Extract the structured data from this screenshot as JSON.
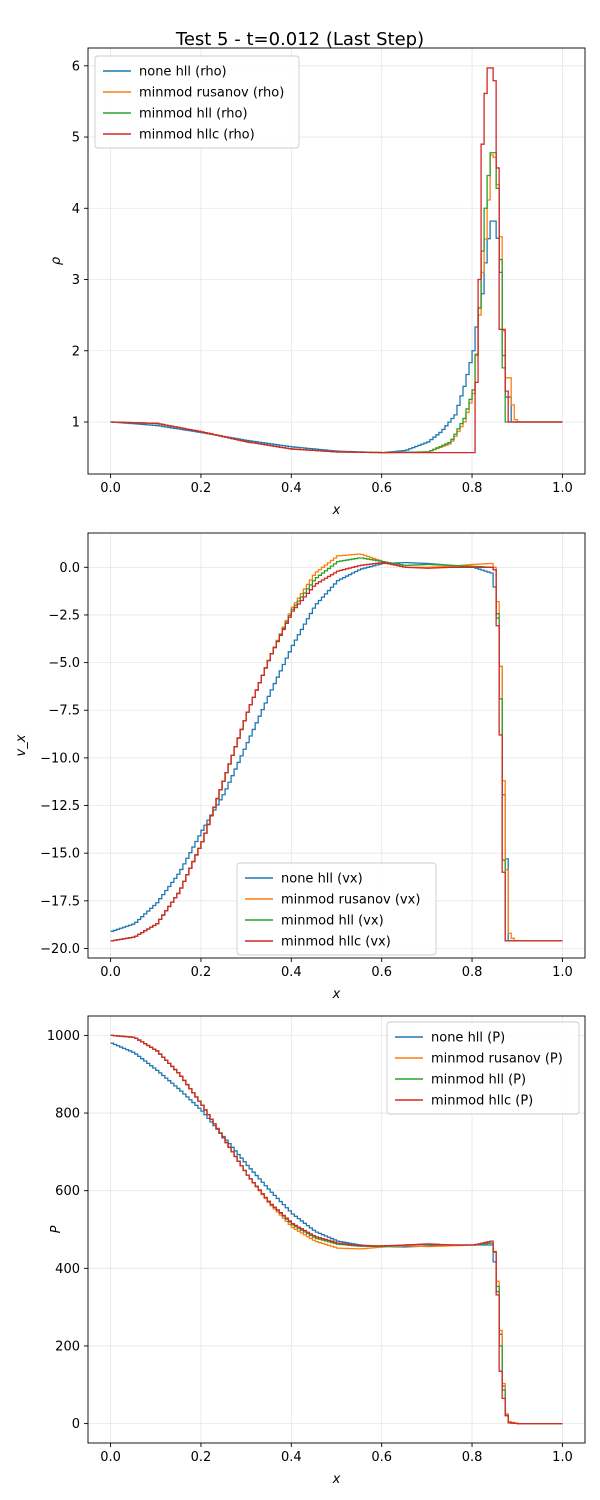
{
  "figure_title": "Test 5 - t=0.012 (Last Step)",
  "colors": {
    "none_hll": "#1f77b4",
    "minmod_rusanov": "#ff7f0e",
    "minmod_hll": "#2ca02c",
    "minmod_hllc": "#d62728",
    "grid": "#e6e6e6"
  },
  "chart_data": [
    {
      "type": "line",
      "title": "",
      "xlabel": "x",
      "ylabel": "ρ",
      "xlim": [
        -0.05,
        1.05
      ],
      "ylim": [
        0.27,
        6.25
      ],
      "xticks": [
        0.0,
        0.2,
        0.4,
        0.6,
        0.8,
        1.0
      ],
      "xtick_labels": [
        "0.0",
        "0.2",
        "0.4",
        "0.6",
        "0.8",
        "1.0"
      ],
      "yticks": [
        1,
        2,
        3,
        4,
        5,
        6
      ],
      "ytick_labels": [
        "1",
        "2",
        "3",
        "4",
        "5",
        "6"
      ],
      "grid": true,
      "legend_position": "top-left",
      "step": true,
      "series": [
        {
          "name": "none hll (rho)",
          "color_key": "none_hll",
          "x": [
            0.0,
            0.1,
            0.2,
            0.3,
            0.4,
            0.5,
            0.6,
            0.65,
            0.7,
            0.73,
            0.76,
            0.78,
            0.8,
            0.81,
            0.82,
            0.83,
            0.84,
            0.85,
            0.86,
            0.87,
            0.88,
            0.885,
            0.9,
            1.0
          ],
          "y": [
            1.0,
            0.95,
            0.85,
            0.74,
            0.65,
            0.59,
            0.57,
            0.6,
            0.72,
            0.87,
            1.1,
            1.5,
            2.0,
            2.5,
            2.8,
            3.45,
            3.82,
            3.82,
            3.1,
            1.35,
            1.35,
            1.0,
            1.0,
            1.0
          ]
        },
        {
          "name": "minmod rusanov (rho)",
          "color_key": "minmod_rusanov",
          "x": [
            0.0,
            0.1,
            0.2,
            0.3,
            0.4,
            0.5,
            0.6,
            0.7,
            0.75,
            0.78,
            0.8,
            0.81,
            0.82,
            0.83,
            0.84,
            0.85,
            0.86,
            0.87,
            0.88,
            0.89,
            0.9,
            0.91,
            1.0
          ],
          "y": [
            1.0,
            0.98,
            0.86,
            0.72,
            0.62,
            0.58,
            0.57,
            0.58,
            0.7,
            1.0,
            1.4,
            2.2,
            3.1,
            3.8,
            4.75,
            4.7,
            3.6,
            1.62,
            1.62,
            1.05,
            1.0,
            1.0,
            1.0
          ]
        },
        {
          "name": "minmod hll (rho)",
          "color_key": "minmod_hll",
          "x": [
            0.0,
            0.1,
            0.2,
            0.3,
            0.4,
            0.5,
            0.6,
            0.7,
            0.75,
            0.78,
            0.8,
            0.81,
            0.82,
            0.83,
            0.84,
            0.85,
            0.86,
            0.87,
            0.88,
            0.9,
            1.0
          ],
          "y": [
            1.0,
            0.98,
            0.86,
            0.72,
            0.62,
            0.58,
            0.57,
            0.58,
            0.72,
            1.05,
            1.45,
            2.2,
            3.4,
            4.3,
            4.78,
            4.78,
            3.28,
            1.0,
            1.0,
            1.0,
            1.0
          ]
        },
        {
          "name": "minmod hllc (rho)",
          "color_key": "minmod_hllc",
          "x": [
            0.0,
            0.1,
            0.2,
            0.3,
            0.4,
            0.5,
            0.6,
            0.7,
            0.8,
            0.81,
            0.82,
            0.83,
            0.84,
            0.85,
            0.86,
            0.87,
            0.875,
            0.9,
            1.0
          ],
          "y": [
            1.0,
            0.98,
            0.86,
            0.72,
            0.62,
            0.58,
            0.57,
            0.57,
            0.57,
            2.05,
            4.9,
            5.97,
            5.97,
            5.7,
            2.3,
            2.3,
            1.0,
            1.0,
            1.0
          ]
        }
      ]
    },
    {
      "type": "line",
      "title": "",
      "xlabel": "x",
      "ylabel": "v_x",
      "xlim": [
        -0.05,
        1.05
      ],
      "ylim": [
        -20.5,
        1.8
      ],
      "xticks": [
        0.0,
        0.2,
        0.4,
        0.6,
        0.8,
        1.0
      ],
      "xtick_labels": [
        "0.0",
        "0.2",
        "0.4",
        "0.6",
        "0.8",
        "1.0"
      ],
      "yticks": [
        0.0,
        -2.5,
        -5.0,
        -7.5,
        -10.0,
        -12.5,
        -15.0,
        -17.5,
        -20.0
      ],
      "ytick_labels": [
        "0.0",
        "−2.5",
        "−5.0",
        "−7.5",
        "−10.0",
        "−12.5",
        "−15.0",
        "−17.5",
        "−20.0"
      ],
      "grid": true,
      "legend_position": "bottom-center",
      "step": true,
      "series": [
        {
          "name": "none hll (vx)",
          "color_key": "none_hll",
          "x": [
            0.0,
            0.05,
            0.1,
            0.15,
            0.2,
            0.25,
            0.3,
            0.35,
            0.4,
            0.45,
            0.5,
            0.55,
            0.6,
            0.65,
            0.7,
            0.75,
            0.8,
            0.84,
            0.85,
            0.86,
            0.87,
            0.875,
            0.88,
            0.9,
            1.0
          ],
          "y": [
            -19.1,
            -18.7,
            -17.6,
            -16.0,
            -13.8,
            -11.8,
            -9.2,
            -6.6,
            -4.1,
            -2.0,
            -0.7,
            -0.1,
            0.2,
            0.25,
            0.2,
            0.1,
            0.0,
            -0.3,
            -1.4,
            -5.2,
            -15.3,
            -15.3,
            -19.6,
            -19.6,
            -19.6
          ]
        },
        {
          "name": "minmod rusanov (vx)",
          "color_key": "minmod_rusanov",
          "x": [
            0.0,
            0.05,
            0.1,
            0.15,
            0.2,
            0.25,
            0.3,
            0.35,
            0.4,
            0.45,
            0.5,
            0.55,
            0.6,
            0.65,
            0.7,
            0.75,
            0.8,
            0.84,
            0.85,
            0.86,
            0.87,
            0.88,
            0.89,
            0.9,
            1.0
          ],
          "y": [
            -19.6,
            -19.4,
            -18.7,
            -17.0,
            -14.4,
            -11.0,
            -7.6,
            -4.7,
            -2.1,
            -0.3,
            0.6,
            0.7,
            0.3,
            0.0,
            0.0,
            0.05,
            0.15,
            0.2,
            -0.1,
            -5.2,
            -14.2,
            -19.2,
            -19.6,
            -19.6,
            -19.6
          ]
        },
        {
          "name": "minmod hll (vx)",
          "color_key": "minmod_hll",
          "x": [
            0.0,
            0.05,
            0.1,
            0.15,
            0.2,
            0.25,
            0.3,
            0.35,
            0.4,
            0.45,
            0.5,
            0.55,
            0.6,
            0.65,
            0.7,
            0.75,
            0.8,
            0.84,
            0.85,
            0.86,
            0.87,
            0.875,
            0.9,
            1.0
          ],
          "y": [
            -19.6,
            -19.4,
            -18.7,
            -17.0,
            -14.4,
            -11.0,
            -7.6,
            -4.7,
            -2.2,
            -0.6,
            0.3,
            0.5,
            0.3,
            0.1,
            0.15,
            0.1,
            0.05,
            0.0,
            -0.2,
            -6.9,
            -19.6,
            -19.6,
            -19.6,
            -19.6
          ]
        },
        {
          "name": "minmod hllc (vx)",
          "color_key": "minmod_hllc",
          "x": [
            0.0,
            0.05,
            0.1,
            0.15,
            0.2,
            0.25,
            0.3,
            0.35,
            0.4,
            0.45,
            0.5,
            0.55,
            0.6,
            0.65,
            0.7,
            0.75,
            0.8,
            0.84,
            0.85,
            0.86,
            0.87,
            0.875,
            0.9,
            1.0
          ],
          "y": [
            -19.6,
            -19.4,
            -18.7,
            -17.0,
            -14.4,
            -11.0,
            -7.6,
            -4.7,
            -2.3,
            -0.9,
            -0.2,
            0.1,
            0.25,
            0.0,
            -0.05,
            0.0,
            0.0,
            0.0,
            -0.2,
            -8.8,
            -19.6,
            -19.6,
            -19.6,
            -19.6
          ]
        }
      ]
    },
    {
      "type": "line",
      "title": "",
      "xlabel": "x",
      "ylabel": "P",
      "xlim": [
        -0.05,
        1.05
      ],
      "ylim": [
        -50,
        1050
      ],
      "xticks": [
        0.0,
        0.2,
        0.4,
        0.6,
        0.8,
        1.0
      ],
      "xtick_labels": [
        "0.0",
        "0.2",
        "0.4",
        "0.6",
        "0.8",
        "1.0"
      ],
      "yticks": [
        0,
        200,
        400,
        600,
        800,
        1000
      ],
      "ytick_labels": [
        "0",
        "200",
        "400",
        "600",
        "800",
        "1000"
      ],
      "grid": true,
      "legend_position": "top-right",
      "step": true,
      "series": [
        {
          "name": "none hll (P)",
          "color_key": "none_hll",
          "x": [
            0.0,
            0.05,
            0.1,
            0.15,
            0.2,
            0.25,
            0.3,
            0.35,
            0.4,
            0.45,
            0.5,
            0.55,
            0.6,
            0.65,
            0.7,
            0.75,
            0.8,
            0.84,
            0.85,
            0.86,
            0.87,
            0.88,
            0.9,
            1.0
          ],
          "y": [
            980,
            955,
            910,
            860,
            805,
            735,
            665,
            600,
            540,
            495,
            470,
            460,
            456,
            455,
            458,
            460,
            460,
            460,
            395,
            230,
            30,
            2,
            0,
            0
          ]
        },
        {
          "name": "minmod rusanov (P)",
          "color_key": "minmod_rusanov",
          "x": [
            0.0,
            0.05,
            0.1,
            0.15,
            0.2,
            0.25,
            0.3,
            0.35,
            0.4,
            0.45,
            0.5,
            0.55,
            0.6,
            0.65,
            0.7,
            0.75,
            0.8,
            0.84,
            0.85,
            0.86,
            0.87,
            0.88,
            0.89,
            0.9,
            1.0
          ],
          "y": [
            1000,
            995,
            960,
            900,
            820,
            730,
            640,
            565,
            505,
            470,
            452,
            450,
            455,
            458,
            456,
            458,
            460,
            465,
            430,
            240,
            35,
            5,
            2,
            0,
            0
          ]
        },
        {
          "name": "minmod hll (P)",
          "color_key": "minmod_hll",
          "x": [
            0.0,
            0.05,
            0.1,
            0.15,
            0.2,
            0.25,
            0.3,
            0.35,
            0.4,
            0.45,
            0.5,
            0.55,
            0.6,
            0.65,
            0.7,
            0.75,
            0.8,
            0.84,
            0.85,
            0.86,
            0.87,
            0.88,
            0.9,
            1.0
          ],
          "y": [
            1000,
            995,
            960,
            900,
            820,
            730,
            640,
            568,
            512,
            478,
            462,
            457,
            456,
            460,
            462,
            460,
            460,
            465,
            430,
            200,
            30,
            2,
            0,
            0
          ]
        },
        {
          "name": "minmod hllc (P)",
          "color_key": "minmod_hllc",
          "x": [
            0.0,
            0.05,
            0.1,
            0.15,
            0.2,
            0.25,
            0.3,
            0.35,
            0.4,
            0.45,
            0.5,
            0.55,
            0.6,
            0.65,
            0.7,
            0.75,
            0.8,
            0.84,
            0.85,
            0.86,
            0.87,
            0.88,
            0.9,
            1.0
          ],
          "y": [
            1000,
            995,
            960,
            900,
            820,
            730,
            640,
            568,
            515,
            482,
            465,
            458,
            458,
            460,
            463,
            460,
            460,
            470,
            430,
            135,
            30,
            2,
            0,
            0
          ]
        }
      ]
    }
  ]
}
